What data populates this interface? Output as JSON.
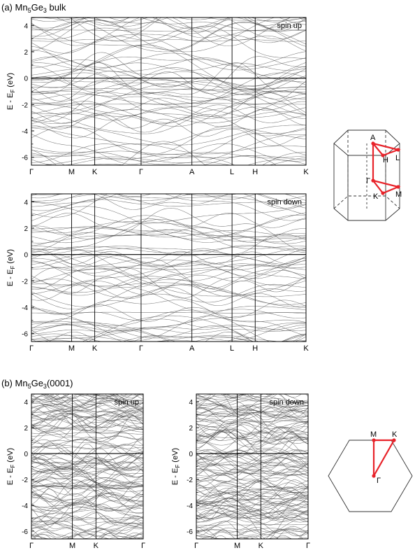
{
  "panel_labels": {
    "a": {
      "prefix": "(a) Mn",
      "sub1": "5",
      "mid": "Ge",
      "sub2": "3",
      "suffix": " bulk"
    },
    "b": {
      "prefix": "(b) Mn",
      "sub1": "5",
      "mid": "Ge",
      "sub2": "3",
      "suffix": "(0001)"
    }
  },
  "ylabel": {
    "pre": "E - E",
    "sub": "F",
    "post": " (eV)"
  },
  "chart_data": [
    {
      "type": "line",
      "id": "bulk-up",
      "annotation": "spin up",
      "ylim": [
        -6.6,
        4.6
      ],
      "yticks": [
        -6,
        -4,
        -2,
        0,
        2,
        4
      ],
      "kpoints": [
        {
          "label": "Γ",
          "pos": 0.0
        },
        {
          "label": "M",
          "pos": 1.0
        },
        {
          "label": "K",
          "pos": 1.577
        },
        {
          "label": "Γ",
          "pos": 2.732
        },
        {
          "label": "A",
          "pos": 3.998
        },
        {
          "label": "L",
          "pos": 4.998
        },
        {
          "label": "H",
          "pos": 5.575
        },
        {
          "label": "K",
          "pos": 6.841
        }
      ],
      "fermi_level": 0,
      "grid": false
    },
    {
      "type": "line",
      "id": "bulk-down",
      "annotation": "spin down",
      "ylim": [
        -6.6,
        4.6
      ],
      "yticks": [
        -6,
        -4,
        -2,
        0,
        2,
        4
      ],
      "kpoints": [
        {
          "label": "Γ",
          "pos": 0.0
        },
        {
          "label": "M",
          "pos": 1.0
        },
        {
          "label": "K",
          "pos": 1.577
        },
        {
          "label": "Γ",
          "pos": 2.732
        },
        {
          "label": "A",
          "pos": 3.998
        },
        {
          "label": "L",
          "pos": 4.998
        },
        {
          "label": "H",
          "pos": 5.575
        },
        {
          "label": "K",
          "pos": 6.841
        }
      ],
      "fermi_level": 0,
      "grid": false
    },
    {
      "type": "line",
      "id": "surf-up",
      "annotation": "spin up",
      "ylim": [
        -6.6,
        4.6
      ],
      "yticks": [
        -6,
        -4,
        -2,
        0,
        2,
        4
      ],
      "kpoints": [
        {
          "label": "Γ",
          "pos": 0.0
        },
        {
          "label": "M",
          "pos": 1.0
        },
        {
          "label": "K",
          "pos": 1.577
        },
        {
          "label": "Γ",
          "pos": 2.732
        }
      ],
      "fermi_level": 0,
      "grid": false
    },
    {
      "type": "line",
      "id": "surf-down",
      "annotation": "spin down",
      "ylim": [
        -6.6,
        4.6
      ],
      "yticks": [
        -6,
        -4,
        -2,
        0,
        2,
        4
      ],
      "kpoints": [
        {
          "label": "Γ",
          "pos": 0.0
        },
        {
          "label": "M",
          "pos": 1.0
        },
        {
          "label": "K",
          "pos": 1.577
        },
        {
          "label": "Γ",
          "pos": 2.732
        }
      ],
      "fermi_level": 0,
      "grid": false
    }
  ],
  "bz_bulk": {
    "labels": [
      "A",
      "H",
      "L",
      "Γ",
      "K",
      "M"
    ],
    "path_color": "#e8232a"
  },
  "bz_surface": {
    "labels": [
      "M",
      "K",
      "Γ"
    ],
    "path_color": "#e8232a"
  }
}
